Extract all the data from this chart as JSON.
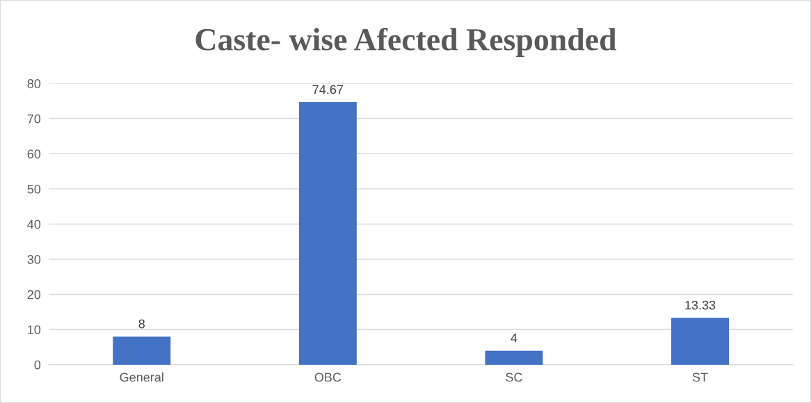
{
  "chart_data": {
    "type": "bar",
    "title": "Caste- wise Afected Responded",
    "categories": [
      "General",
      "OBC",
      "SC",
      "ST"
    ],
    "values": [
      8,
      74.67,
      4,
      13.33
    ],
    "color": "#4472c4",
    "ylim": [
      0,
      80
    ],
    "yticks": [
      0,
      10,
      20,
      30,
      40,
      50,
      60,
      70,
      80
    ],
    "grid": "y",
    "data_labels": true
  }
}
